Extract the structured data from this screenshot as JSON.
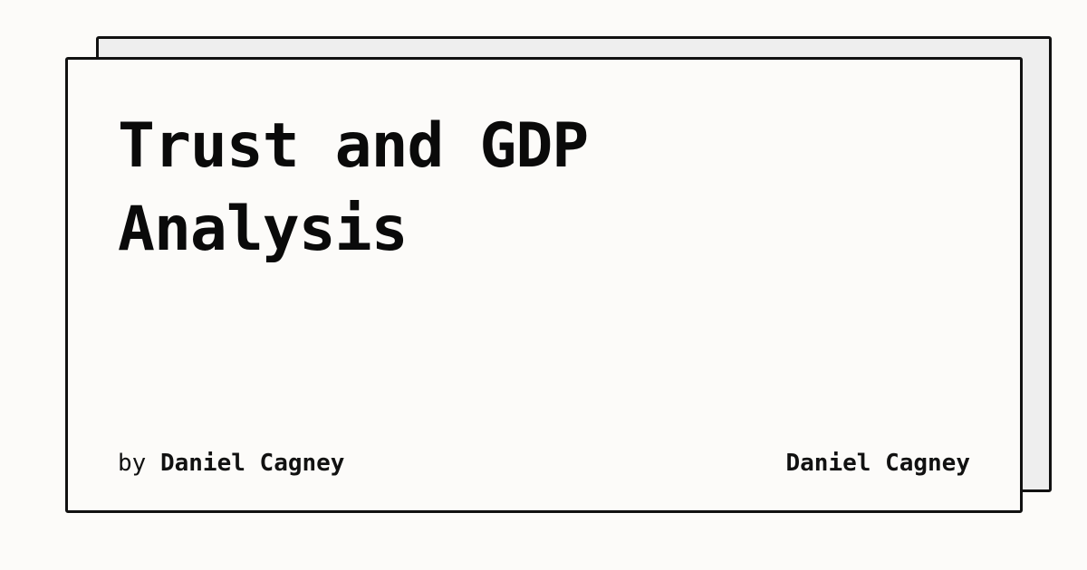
{
  "card": {
    "title": "Trust and GDP Analysis",
    "byline_prefix": "by",
    "author": "Daniel Cagney",
    "site_name": "Daniel Cagney"
  },
  "colors": {
    "background": "#fcfbf9",
    "back_card": "#eeeeee",
    "border": "#111111",
    "text": "#0a0a0a"
  }
}
